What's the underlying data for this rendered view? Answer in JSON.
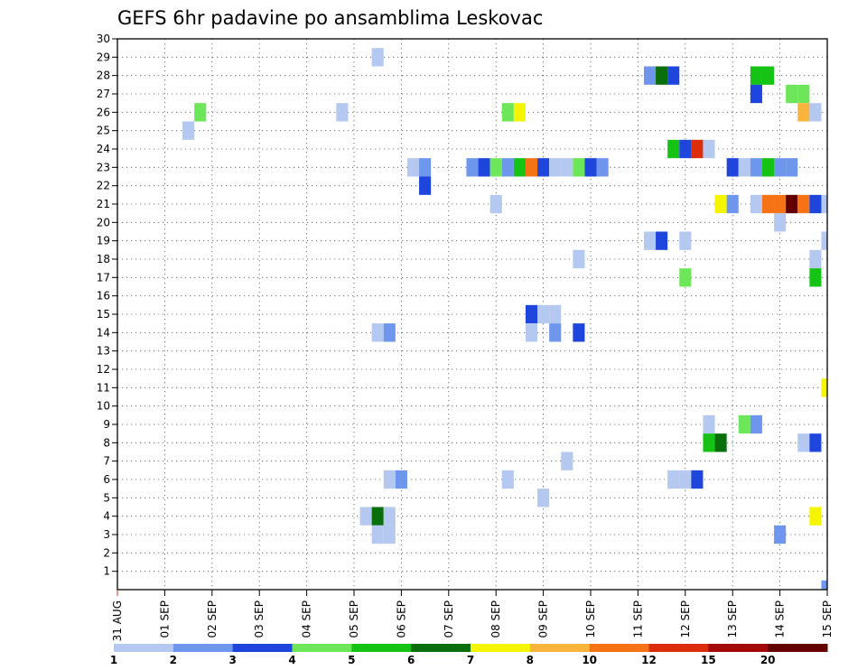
{
  "chart_data": {
    "type": "heatmap",
    "title": "GEFS 6hr padavine po ansamblima Leskovac",
    "xlabel": "",
    "ylabel": "",
    "x_tick_labels": [
      "31 AUG",
      "01 SEP",
      "02 SEP",
      "03 SEP",
      "04 SEP",
      "05 SEP",
      "06 SEP",
      "07 SEP",
      "08 SEP",
      "09 SEP",
      "10 SEP",
      "11 SEP",
      "12 SEP",
      "13 SEP",
      "14 SEP",
      "15 SEP"
    ],
    "y_tick_labels": [
      "1",
      "2",
      "3",
      "4",
      "5",
      "6",
      "7",
      "8",
      "9",
      "10",
      "11",
      "12",
      "13",
      "14",
      "15",
      "16",
      "17",
      "18",
      "19",
      "20",
      "21",
      "22",
      "23",
      "24",
      "25",
      "26",
      "27",
      "28",
      "29",
      "30"
    ],
    "ylim": [
      0,
      30
    ],
    "x_step_hours": 6,
    "legend": {
      "position": "bottom",
      "labels": [
        "1",
        "2",
        "3",
        "4",
        "5",
        "6",
        "7",
        "8",
        "10",
        "12",
        "15",
        "20"
      ],
      "colors": [
        "#b4c8f0",
        "#6e96ec",
        "#1e46dc",
        "#6ee65a",
        "#14c314",
        "#0a6e0a",
        "#f5f500",
        "#fab43c",
        "#f57314",
        "#dc2d0a",
        "#a50a0a",
        "#640000"
      ]
    },
    "cells": [
      {
        "member": 29,
        "step": 22,
        "cat": 1
      },
      {
        "member": 28,
        "step": 45,
        "cat": 2
      },
      {
        "member": 28,
        "step": 46,
        "cat": 6
      },
      {
        "member": 28,
        "step": 47,
        "cat": 3
      },
      {
        "member": 28,
        "step": 54,
        "cat": 5
      },
      {
        "member": 28,
        "step": 55,
        "cat": 5
      },
      {
        "member": 27,
        "step": 54,
        "cat": 3
      },
      {
        "member": 27,
        "step": 57,
        "cat": 4
      },
      {
        "member": 27,
        "step": 58,
        "cat": 4
      },
      {
        "member": 26,
        "step": 7,
        "cat": 4
      },
      {
        "member": 26,
        "step": 19,
        "cat": 1
      },
      {
        "member": 26,
        "step": 33,
        "cat": 4
      },
      {
        "member": 26,
        "step": 34,
        "cat": 7
      },
      {
        "member": 26,
        "step": 58,
        "cat": 8
      },
      {
        "member": 26,
        "step": 59,
        "cat": 1
      },
      {
        "member": 25,
        "step": 6,
        "cat": 1
      },
      {
        "member": 24,
        "step": 47,
        "cat": 5
      },
      {
        "member": 24,
        "step": 48,
        "cat": 3
      },
      {
        "member": 24,
        "step": 49,
        "cat": 10
      },
      {
        "member": 24,
        "step": 50,
        "cat": 1
      },
      {
        "member": 23,
        "step": 25,
        "cat": 1
      },
      {
        "member": 23,
        "step": 26,
        "cat": 2
      },
      {
        "member": 23,
        "step": 30,
        "cat": 2
      },
      {
        "member": 23,
        "step": 31,
        "cat": 3
      },
      {
        "member": 23,
        "step": 32,
        "cat": 4
      },
      {
        "member": 23,
        "step": 33,
        "cat": 2
      },
      {
        "member": 23,
        "step": 34,
        "cat": 5
      },
      {
        "member": 23,
        "step": 35,
        "cat": 9
      },
      {
        "member": 23,
        "step": 36,
        "cat": 3
      },
      {
        "member": 23,
        "step": 37,
        "cat": 1
      },
      {
        "member": 23,
        "step": 38,
        "cat": 1
      },
      {
        "member": 23,
        "step": 39,
        "cat": 4
      },
      {
        "member": 23,
        "step": 40,
        "cat": 3
      },
      {
        "member": 23,
        "step": 41,
        "cat": 2
      },
      {
        "member": 23,
        "step": 52,
        "cat": 3
      },
      {
        "member": 23,
        "step": 53,
        "cat": 1
      },
      {
        "member": 23,
        "step": 54,
        "cat": 2
      },
      {
        "member": 23,
        "step": 55,
        "cat": 5
      },
      {
        "member": 23,
        "step": 56,
        "cat": 2
      },
      {
        "member": 23,
        "step": 57,
        "cat": 2
      },
      {
        "member": 22,
        "step": 26,
        "cat": 3
      },
      {
        "member": 21,
        "step": 32,
        "cat": 1
      },
      {
        "member": 21,
        "step": 51,
        "cat": 7
      },
      {
        "member": 21,
        "step": 52,
        "cat": 2
      },
      {
        "member": 21,
        "step": 54,
        "cat": 1
      },
      {
        "member": 21,
        "step": 55,
        "cat": 9
      },
      {
        "member": 21,
        "step": 56,
        "cat": 9
      },
      {
        "member": 21,
        "step": 57,
        "cat": 12
      },
      {
        "member": 21,
        "step": 58,
        "cat": 9
      },
      {
        "member": 21,
        "step": 59,
        "cat": 3
      },
      {
        "member": 21,
        "step": 60,
        "cat": 1
      },
      {
        "member": 20,
        "step": 56,
        "cat": 1
      },
      {
        "member": 19,
        "step": 45,
        "cat": 1
      },
      {
        "member": 19,
        "step": 46,
        "cat": 3
      },
      {
        "member": 19,
        "step": 48,
        "cat": 1
      },
      {
        "member": 19,
        "step": 60,
        "cat": 1
      },
      {
        "member": 18,
        "step": 39,
        "cat": 1
      },
      {
        "member": 18,
        "step": 59,
        "cat": 1
      },
      {
        "member": 17,
        "step": 48,
        "cat": 4
      },
      {
        "member": 17,
        "step": 59,
        "cat": 5
      },
      {
        "member": 15,
        "step": 35,
        "cat": 3
      },
      {
        "member": 15,
        "step": 36,
        "cat": 1
      },
      {
        "member": 15,
        "step": 37,
        "cat": 1
      },
      {
        "member": 14,
        "step": 22,
        "cat": 1
      },
      {
        "member": 14,
        "step": 23,
        "cat": 2
      },
      {
        "member": 14,
        "step": 35,
        "cat": 1
      },
      {
        "member": 14,
        "step": 37,
        "cat": 2
      },
      {
        "member": 14,
        "step": 39,
        "cat": 3
      },
      {
        "member": 11,
        "step": 60,
        "cat": 7
      },
      {
        "member": 9,
        "step": 50,
        "cat": 1
      },
      {
        "member": 9,
        "step": 53,
        "cat": 4
      },
      {
        "member": 9,
        "step": 54,
        "cat": 2
      },
      {
        "member": 8,
        "step": 50,
        "cat": 5
      },
      {
        "member": 8,
        "step": 51,
        "cat": 6
      },
      {
        "member": 8,
        "step": 58,
        "cat": 1
      },
      {
        "member": 8,
        "step": 59,
        "cat": 3
      },
      {
        "member": 7,
        "step": 38,
        "cat": 1
      },
      {
        "member": 6,
        "step": 23,
        "cat": 1
      },
      {
        "member": 6,
        "step": 24,
        "cat": 2
      },
      {
        "member": 6,
        "step": 33,
        "cat": 1
      },
      {
        "member": 6,
        "step": 47,
        "cat": 1
      },
      {
        "member": 6,
        "step": 48,
        "cat": 1
      },
      {
        "member": 6,
        "step": 49,
        "cat": 3
      },
      {
        "member": 5,
        "step": 36,
        "cat": 1
      },
      {
        "member": 4,
        "step": 21,
        "cat": 1
      },
      {
        "member": 4,
        "step": 22,
        "cat": 6
      },
      {
        "member": 4,
        "step": 23,
        "cat": 1
      },
      {
        "member": 4,
        "step": 59,
        "cat": 7
      },
      {
        "member": 3,
        "step": 22,
        "cat": 1
      },
      {
        "member": 3,
        "step": 23,
        "cat": 1
      },
      {
        "member": 3,
        "step": 56,
        "cat": 2
      },
      {
        "member": 0,
        "step": 60,
        "cat": 2
      }
    ]
  }
}
